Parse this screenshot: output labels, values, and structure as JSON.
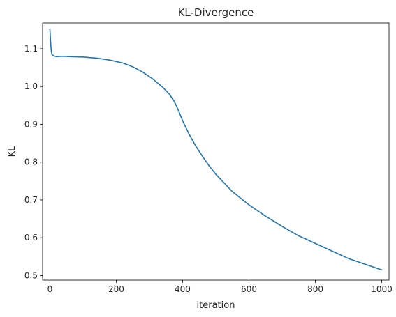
{
  "chart_data": {
    "type": "line",
    "title": "KL-Divergence",
    "xlabel": "iteration",
    "ylabel": "KL",
    "xlim": [
      -22,
      1022
    ],
    "ylim": [
      0.488,
      1.168
    ],
    "xticks": [
      0,
      200,
      400,
      600,
      800,
      1000
    ],
    "yticks": [
      0.5,
      0.6,
      0.7,
      0.8,
      0.9,
      1.0,
      1.1
    ],
    "ytick_labels": [
      "0.5",
      "0.6",
      "0.7",
      "0.8",
      "0.9",
      "1.0",
      "1.1"
    ],
    "grid": false,
    "series": [
      {
        "color": "#1f77b4",
        "x": [
          0,
          2,
          4,
          6,
          8,
          12,
          20,
          40,
          60,
          100,
          140,
          180,
          220,
          250,
          280,
          310,
          340,
          360,
          375,
          385,
          395,
          405,
          420,
          440,
          460,
          480,
          500,
          550,
          600,
          650,
          700,
          750,
          800,
          850,
          900,
          950,
          1000
        ],
        "y": [
          1.152,
          1.12,
          1.095,
          1.085,
          1.083,
          1.081,
          1.079,
          1.08,
          1.079,
          1.078,
          1.075,
          1.07,
          1.062,
          1.052,
          1.038,
          1.02,
          0.998,
          0.98,
          0.96,
          0.942,
          0.92,
          0.9,
          0.873,
          0.842,
          0.815,
          0.79,
          0.768,
          0.722,
          0.687,
          0.657,
          0.63,
          0.605,
          0.585,
          0.565,
          0.545,
          0.53,
          0.515
        ]
      }
    ]
  }
}
